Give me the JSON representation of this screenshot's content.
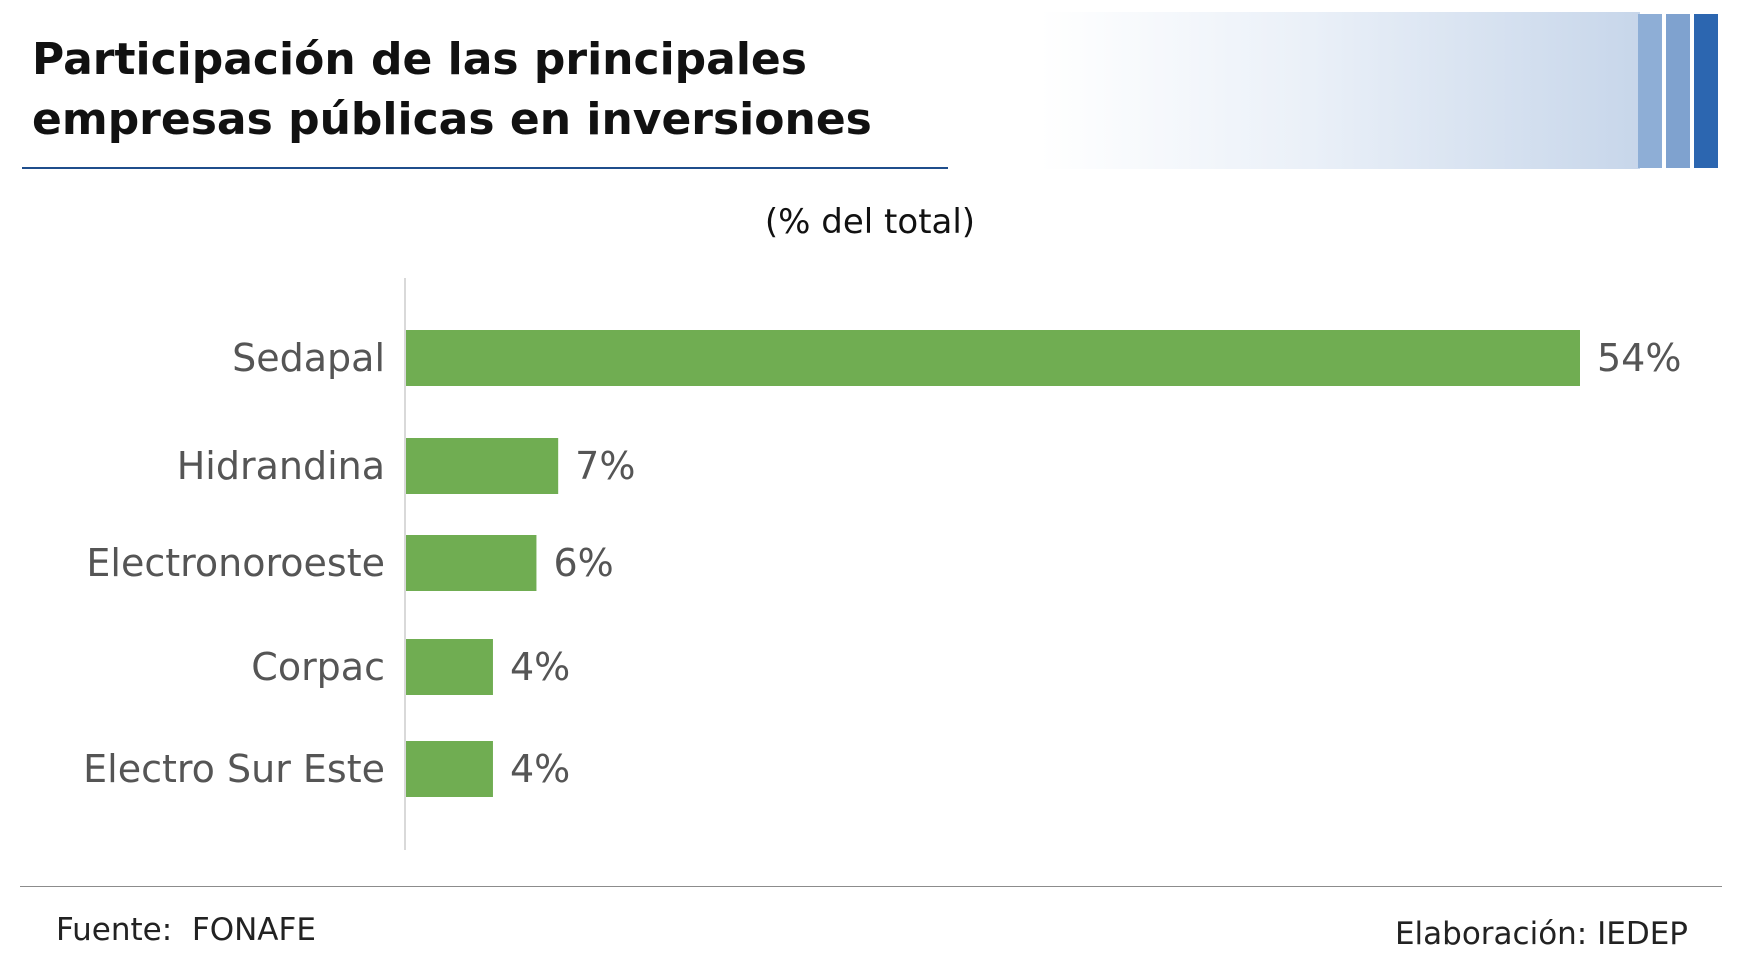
{
  "header": {
    "title": "Participación de las principales empresas públicas en inversiones",
    "accent_color": "#2c66b0"
  },
  "footer": {
    "source": "Fuente:  FONAFE",
    "credit": "Elaboración: IEDEP"
  },
  "chart_data": {
    "type": "bar",
    "orientation": "horizontal",
    "subtitle": "(% del total)",
    "categories": [
      "Sedapal",
      "Hidrandina",
      "Electronoroeste",
      "Corpac",
      "Electro Sur Este"
    ],
    "values": [
      54,
      7,
      6,
      4,
      4
    ],
    "value_labels": [
      "54%",
      "7%",
      "6%",
      "4%",
      "4%"
    ],
    "unit": "%",
    "xlim": [
      0,
      54
    ],
    "grid": false,
    "legend": "none",
    "bar_color": "#70ad52"
  }
}
